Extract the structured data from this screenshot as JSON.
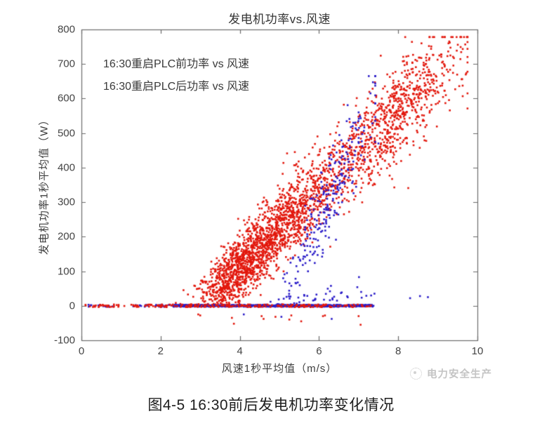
{
  "figure": {
    "caption": "图4-5 16:30前后发电机功率变化情况",
    "watermark": {
      "icon": "circular-emblem-icon",
      "text": "电力安全生产"
    }
  },
  "chart_data": {
    "type": "scatter",
    "title": "发电机功率vs.风速",
    "xlabel": "风速1秒平均值（m/s）",
    "ylabel": "发电机功率1秒平均值（W）",
    "xlim": [
      0,
      10
    ],
    "ylim": [
      -100,
      800
    ],
    "xticks": [
      0,
      2,
      4,
      6,
      8,
      10
    ],
    "yticks": [
      800,
      700,
      600,
      500,
      400,
      300,
      200,
      100,
      0,
      -100
    ],
    "grid": false,
    "axis_color": "#6a6a6a",
    "legend": {
      "position": "top-left-inside",
      "entries": [
        "16:30重启PLC前功率 vs 风速",
        "16:30重启PLC后功率 vs 风速"
      ]
    },
    "series": [
      {
        "name": "16:30重启PLC前功率 vs 风速",
        "color": "#e2180d",
        "marker_px": 2.6,
        "seed": 11,
        "clusters": [
          {
            "kind": "powercurve",
            "n": 2700,
            "v_mix": [
              {
                "mean": 3.9,
                "sd": 0.5,
                "w": 0.3
              },
              {
                "mean": 5.2,
                "sd": 0.75,
                "w": 0.4
              },
              {
                "mean": 7.9,
                "sd": 0.85,
                "w": 0.3
              }
            ],
            "v_range": [
              2.3,
              9.75
            ],
            "v0": 3.0,
            "slope": 112,
            "saturate": 715,
            "noise_base": 26,
            "noise_per_v": 5.5,
            "noise_max": 72,
            "p_range": [
              0,
              778
            ]
          },
          {
            "kind": "zeroline",
            "n": 30,
            "v_range": [
              0.02,
              1.1
            ],
            "jitter": 4
          },
          {
            "kind": "zeroline",
            "n": 40,
            "v_range": [
              1.25,
              2.45
            ],
            "jitter": 4
          },
          {
            "kind": "zeroline",
            "n": 110,
            "v_range": [
              2.5,
              5.3
            ],
            "jitter": 4
          },
          {
            "kind": "zeroline",
            "n": 70,
            "v_range": [
              5.3,
              7.38
            ],
            "jitter": 4
          },
          {
            "kind": "points",
            "points": [
              [
                2.95,
                -25
              ],
              [
                3.0,
                -28
              ],
              [
                3.8,
                -35
              ],
              [
                3.85,
                -52
              ],
              [
                4.55,
                -30
              ],
              [
                4.6,
                -38
              ],
              [
                4.9,
                -32
              ],
              [
                5.25,
                -40
              ],
              [
                5.3,
                -28
              ],
              [
                5.55,
                -45
              ],
              [
                6.1,
                -30
              ],
              [
                6.15,
                -28
              ],
              [
                7.0,
                -30
              ],
              [
                7.05,
                -55
              ]
            ]
          }
        ]
      },
      {
        "name": "16:30重启PLC后功率 vs 风速",
        "color": "#2a1cc8",
        "marker_px": 2.6,
        "seed": 23,
        "clusters": [
          {
            "kind": "zeroline",
            "n": 14,
            "v_range": [
              0.12,
              0.8
            ],
            "jitter": 3
          },
          {
            "kind": "zeroline",
            "n": 26,
            "v_range": [
              1.3,
              2.32
            ],
            "jitter": 3
          },
          {
            "kind": "zeroline",
            "n": 820,
            "v_range": [
              2.32,
              7.38
            ],
            "jitter": 2.5
          },
          {
            "kind": "band",
            "n": 250,
            "v_mean": 6.2,
            "v_sd": 0.6,
            "v_range": [
              4.95,
              7.42
            ],
            "v0": 4.95,
            "slope": 235,
            "noise_sd": 55,
            "p_range": [
              4,
              665
            ]
          },
          {
            "kind": "band",
            "n": 40,
            "v_mean": 6.0,
            "v_sd": 0.75,
            "v_range": [
              4.5,
              7.4
            ],
            "v0": 4.4,
            "slope": 16,
            "noise_sd": 16,
            "p_range": [
              2,
              90
            ]
          },
          {
            "kind": "points",
            "points": [
              [
                8.3,
                22
              ],
              [
                8.55,
                28
              ],
              [
                8.75,
                25
              ],
              [
                4.1,
                -25
              ],
              [
                5.05,
                -32
              ],
              [
                6.32,
                -38
              ],
              [
                6.85,
                520
              ],
              [
                7.0,
                560
              ],
              [
                7.5,
                470
              ],
              [
                7.3,
                615
              ]
            ]
          }
        ]
      }
    ]
  }
}
